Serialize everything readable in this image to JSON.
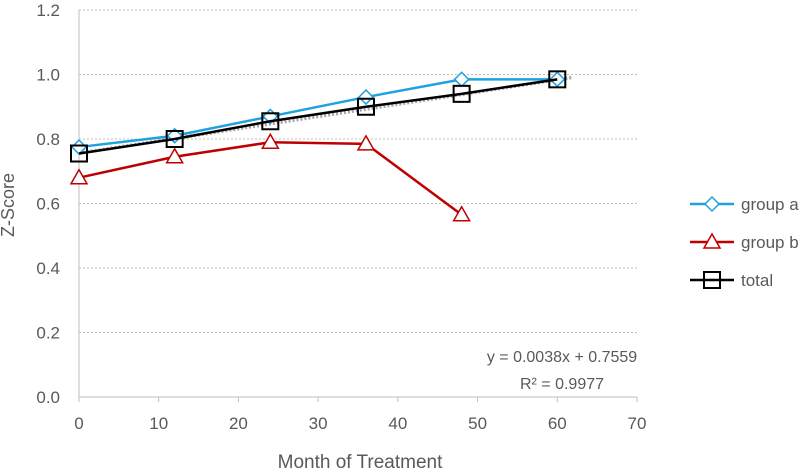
{
  "chart_data": {
    "type": "line",
    "title": "",
    "xlabel": "Month of Treatment",
    "ylabel": "Z-Score",
    "xlim": [
      0,
      70
    ],
    "ylim": [
      0,
      1.2
    ],
    "x_ticks": [
      0,
      10,
      20,
      30,
      40,
      50,
      60,
      70
    ],
    "y_ticks": [
      0.0,
      0.2,
      0.4,
      0.6,
      0.8,
      1.0,
      1.2
    ],
    "grid": "horizontal-dotted",
    "legend_position": "right",
    "series": [
      {
        "name": "group a",
        "marker": "diamond",
        "color": "#1FA2E0",
        "x": [
          0,
          12,
          24,
          36,
          48,
          60
        ],
        "y": [
          0.775,
          0.81,
          0.87,
          0.93,
          0.985,
          0.985
        ]
      },
      {
        "name": "group b",
        "marker": "triangle",
        "color": "#C00000",
        "x": [
          0,
          12,
          24,
          36,
          48
        ],
        "y": [
          0.68,
          0.745,
          0.79,
          0.785,
          0.565
        ]
      },
      {
        "name": "total",
        "marker": "square",
        "color": "#000000",
        "x": [
          0,
          12,
          24,
          36,
          48,
          60
        ],
        "y": [
          0.755,
          0.8,
          0.855,
          0.9,
          0.94,
          0.985
        ]
      }
    ],
    "trendline": {
      "series": "total",
      "slope": 0.0038,
      "intercept": 0.7559,
      "x_range": [
        0,
        62
      ],
      "equation_label": "y = 0.0038x + 0.7559",
      "r2_label": "R² = 0.9977"
    },
    "colors": {
      "axis": "#BFBFBF",
      "grid": "#BFBFBF",
      "text": "#595959",
      "trend": "#A6A6A6"
    }
  }
}
